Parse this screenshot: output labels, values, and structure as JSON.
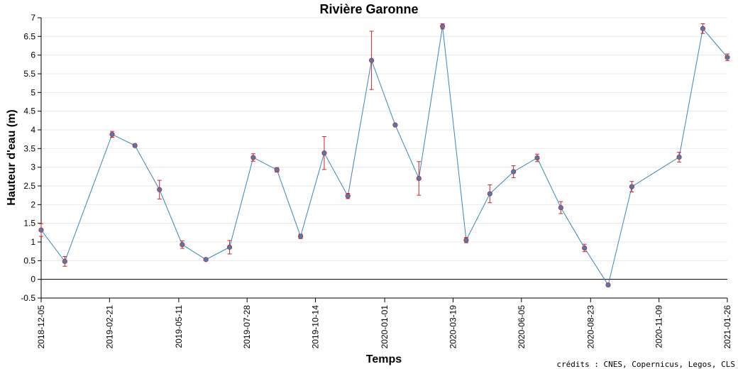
{
  "chart_data": {
    "type": "line",
    "title": "Rivière Garonne",
    "x_label": "Temps",
    "y_label": "Hauteur d'eau (m)",
    "credits": "crédits : CNES, Copernicus, Legos, CLS",
    "x": [
      "2018-12-05",
      "2019-01-01",
      "2019-02-24",
      "2019-03-22",
      "2019-04-19",
      "2019-05-15",
      "2019-06-11",
      "2019-07-08",
      "2019-08-04",
      "2019-08-31",
      "2019-09-27",
      "2019-10-24",
      "2019-11-20",
      "2019-12-17",
      "2020-01-13",
      "2020-02-09",
      "2020-03-07",
      "2020-04-03",
      "2020-04-30",
      "2020-05-27",
      "2020-06-23",
      "2020-07-20",
      "2020-08-16",
      "2020-09-12",
      "2020-10-09",
      "2020-12-02",
      "2020-12-29",
      "2021-01-26"
    ],
    "values": [
      1.32,
      0.48,
      3.88,
      3.58,
      2.4,
      0.93,
      0.53,
      0.86,
      3.26,
      2.93,
      1.15,
      3.38,
      2.23,
      5.86,
      4.13,
      2.7,
      6.77,
      1.05,
      2.29,
      2.88,
      3.25,
      1.92,
      0.84,
      -0.15,
      2.48,
      3.27,
      6.71,
      5.94
    ],
    "errors": [
      0.17,
      0.13,
      0.08,
      0.04,
      0.25,
      0.1,
      0.03,
      0.18,
      0.1,
      0.06,
      0.06,
      0.44,
      0.07,
      0.78,
      0.02,
      0.45,
      0.07,
      0.07,
      0.24,
      0.16,
      0.1,
      0.16,
      0.1,
      0.03,
      0.14,
      0.13,
      0.13,
      0.09
    ],
    "color": "#3a84b8",
    "marker_color": "#4a7db5",
    "error_color": "#c0282d",
    "xlim": [
      "2018-12-05",
      "2021-01-26"
    ],
    "xticks": [
      "2018-12-05",
      "2019-02-21",
      "2019-05-11",
      "2019-07-28",
      "2019-10-14",
      "2020-01-01",
      "2020-03-19",
      "2020-06-05",
      "2020-08-23",
      "2020-11-09",
      "2021-01-26"
    ],
    "ylim": [
      -0.5,
      7
    ],
    "yticks": [
      -0.5,
      0,
      0.5,
      1,
      1.5,
      2,
      2.5,
      3,
      3.5,
      4,
      4.5,
      5,
      5.5,
      6,
      6.5,
      7
    ],
    "grid": true
  }
}
